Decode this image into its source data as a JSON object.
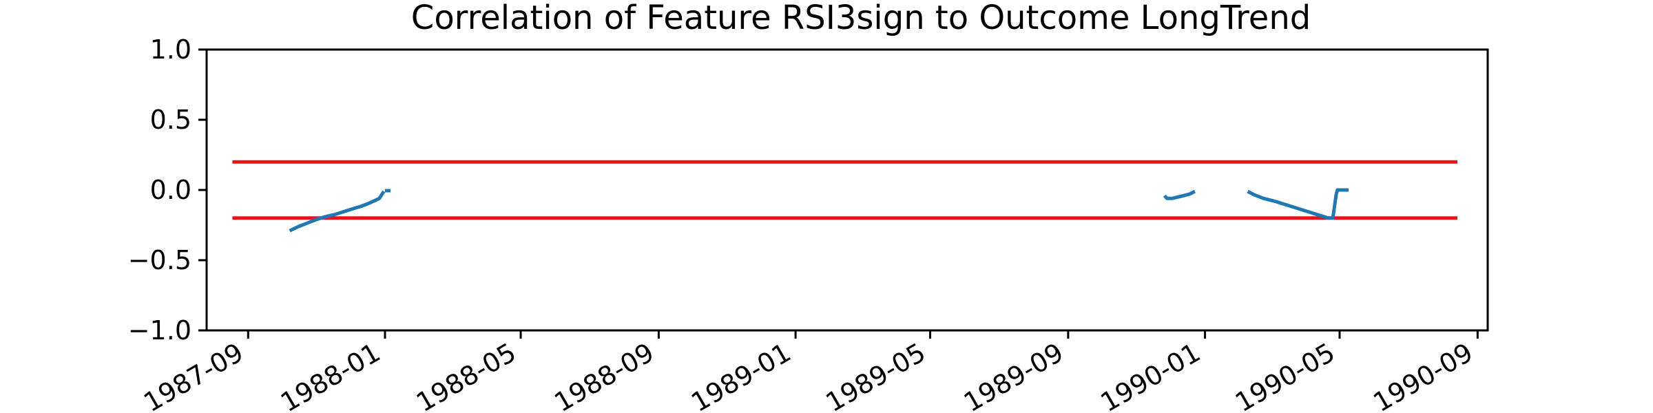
{
  "chart_data": {
    "type": "line",
    "title": "Correlation of Feature RSI3sign to Outcome LongTrend",
    "xlabel": "",
    "ylabel": "",
    "xlim": [
      "1987-07-26",
      "1990-09-10"
    ],
    "ylim": [
      -1.0,
      1.0
    ],
    "yticks": [
      {
        "value": 1.0,
        "label": "1.0"
      },
      {
        "value": 0.5,
        "label": "0.5"
      },
      {
        "value": 0.0,
        "label": "0.0"
      },
      {
        "value": -0.5,
        "label": "−0.5"
      },
      {
        "value": -1.0,
        "label": "−1.0"
      }
    ],
    "xticks": [
      {
        "value": "1987-09-01",
        "label": "1987-09"
      },
      {
        "value": "1988-01-01",
        "label": "1988-01"
      },
      {
        "value": "1988-05-01",
        "label": "1988-05"
      },
      {
        "value": "1988-09-01",
        "label": "1988-09"
      },
      {
        "value": "1989-01-01",
        "label": "1989-01"
      },
      {
        "value": "1989-05-01",
        "label": "1989-05"
      },
      {
        "value": "1989-09-01",
        "label": "1989-09"
      },
      {
        "value": "1990-01-01",
        "label": "1990-01"
      },
      {
        "value": "1990-05-01",
        "label": "1990-05"
      },
      {
        "value": "1990-09-01",
        "label": "1990-09"
      }
    ],
    "threshold_lines": [
      {
        "value": 0.2,
        "x_start": "1987-08-18",
        "x_end": "1990-08-14",
        "color": "#e8141a"
      },
      {
        "value": -0.2,
        "x_start": "1987-08-18",
        "x_end": "1990-08-14",
        "color": "#e8141a"
      }
    ],
    "series_color": "#1f77b4",
    "segments": [
      [
        [
          "1987-10-08",
          -0.29
        ],
        [
          "1987-10-16",
          -0.26
        ],
        [
          "1987-10-24",
          -0.235
        ],
        [
          "1987-11-01",
          -0.21
        ],
        [
          "1987-11-09",
          -0.19
        ],
        [
          "1987-11-17",
          -0.175
        ],
        [
          "1987-11-25",
          -0.155
        ],
        [
          "1987-12-03",
          -0.135
        ],
        [
          "1987-12-11",
          -0.115
        ],
        [
          "1987-12-19",
          -0.09
        ],
        [
          "1987-12-27",
          -0.06
        ],
        [
          "1987-12-31",
          -0.01
        ]
      ],
      [
        [
          "1988-01-01",
          -0.005
        ],
        [
          "1988-01-06",
          -0.005
        ]
      ],
      [
        [
          "1989-11-26",
          -0.04
        ],
        [
          "1989-11-28",
          -0.06
        ],
        [
          "1989-12-03",
          -0.06
        ],
        [
          "1989-12-08",
          -0.05
        ],
        [
          "1989-12-13",
          -0.04
        ],
        [
          "1989-12-18",
          -0.03
        ],
        [
          "1989-12-23",
          -0.01
        ]
      ],
      [
        [
          "1990-02-08",
          -0.01
        ],
        [
          "1990-02-14",
          -0.035
        ],
        [
          "1990-02-22",
          -0.06
        ],
        [
          "1990-03-04",
          -0.08
        ],
        [
          "1990-03-14",
          -0.105
        ],
        [
          "1990-03-24",
          -0.13
        ],
        [
          "1990-04-03",
          -0.155
        ],
        [
          "1990-04-13",
          -0.18
        ],
        [
          "1990-04-21",
          -0.2
        ],
        [
          "1990-04-25",
          -0.2
        ],
        [
          "1990-04-28",
          -0.03
        ],
        [
          "1990-04-29",
          0.0
        ],
        [
          "1990-05-09",
          0.0
        ]
      ]
    ],
    "grid": false,
    "legend": "none"
  }
}
